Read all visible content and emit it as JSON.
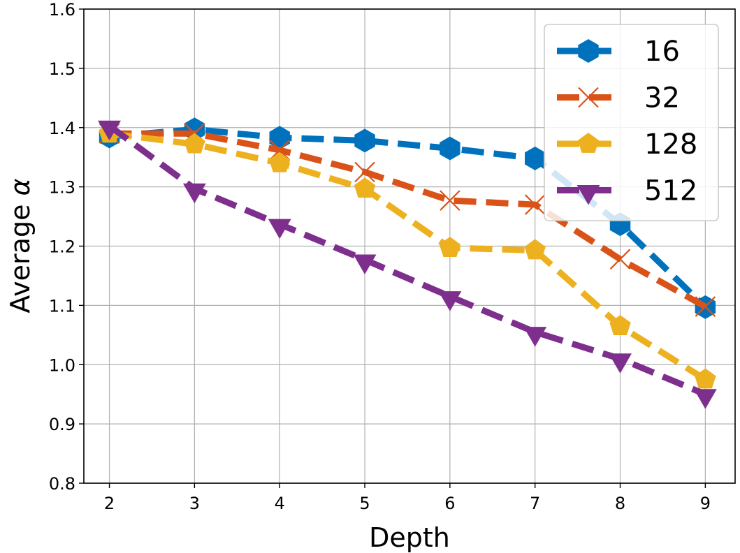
{
  "chart_data": {
    "type": "line",
    "title": "",
    "xlabel": "Depth",
    "ylabel_text": "Average ",
    "ylabel_symbol": "α",
    "x": [
      2,
      3,
      4,
      5,
      6,
      7,
      8,
      9
    ],
    "x_ticks": [
      "2",
      "3",
      "4",
      "5",
      "6",
      "7",
      "8",
      "9"
    ],
    "y_ticks": [
      "0.8",
      "0.9",
      "1.0",
      "1.1",
      "1.2",
      "1.3",
      "1.4",
      "1.5",
      "1.6"
    ],
    "xlim": [
      1.7,
      9.35
    ],
    "ylim": [
      0.8,
      1.6
    ],
    "grid": true,
    "legend_position": "top-right",
    "series": [
      {
        "name": "16",
        "color": "#0072BD",
        "marker": "hexagon",
        "values": [
          1.385,
          1.397,
          1.383,
          1.378,
          1.365,
          1.348,
          1.237,
          1.097
        ]
      },
      {
        "name": "32",
        "color": "#D95319",
        "marker": "x",
        "values": [
          1.39,
          1.39,
          1.362,
          1.325,
          1.277,
          1.27,
          1.178,
          1.098
        ]
      },
      {
        "name": "128",
        "color": "#EDB120",
        "marker": "pentagon",
        "values": [
          1.39,
          1.372,
          1.34,
          1.297,
          1.197,
          1.193,
          1.065,
          0.975
        ]
      },
      {
        "name": "512",
        "color": "#7E2F8E",
        "marker": "triangle-down",
        "values": [
          1.403,
          1.297,
          1.237,
          1.177,
          1.115,
          1.055,
          1.01,
          0.95
        ]
      }
    ]
  }
}
